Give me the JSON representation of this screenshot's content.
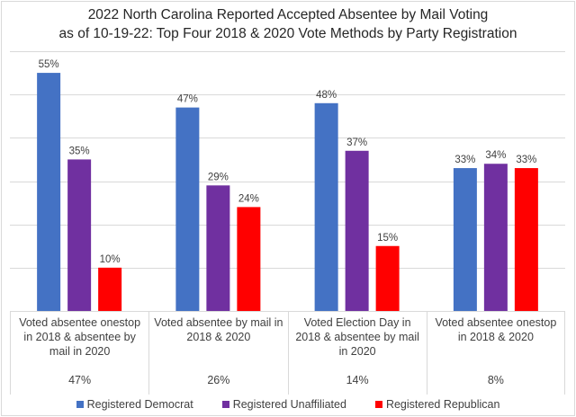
{
  "chart_data": {
    "type": "bar",
    "title": "2022 North Carolina Reported Accepted Absentee by Mail Voting as of 10-19-22: Top Four 2018 & 2020 Vote Methods by Party Registration",
    "title_lines": [
      "2022 North Carolina Reported Accepted Absentee by Mail Voting",
      "as of 10-19-22: Top Four 2018 & 2020 Vote Methods by Party Registration"
    ],
    "xlabel": "",
    "ylabel": "",
    "ylim": [
      0,
      60
    ],
    "grid": true,
    "gridline_step": 10,
    "legend_position": "bottom",
    "categories": [
      {
        "label": "Voted absentee onestop in 2018 & absentee by mail in 2020",
        "share": "47%"
      },
      {
        "label": "Voted absentee by mail in 2018 & 2020",
        "share": "26%"
      },
      {
        "label": "Voted Election Day in 2018 & absentee by mail in 2020",
        "share": "14%"
      },
      {
        "label": "Voted absentee onestop in 2018 & 2020",
        "share": "8%"
      }
    ],
    "series": [
      {
        "name": "Registered Democrat",
        "color": "#4472C4",
        "values": [
          55,
          47,
          48,
          33
        ],
        "labels": [
          "55%",
          "47%",
          "48%",
          "33%"
        ]
      },
      {
        "name": "Registered Unaffiliated",
        "color": "#7030A0",
        "values": [
          35,
          29,
          37,
          34
        ],
        "labels": [
          "35%",
          "29%",
          "37%",
          "34%"
        ]
      },
      {
        "name": "Registered Republican",
        "color": "#FF0000",
        "values": [
          10,
          24,
          15,
          33
        ],
        "labels": [
          "10%",
          "24%",
          "15%",
          "33%"
        ]
      }
    ]
  }
}
